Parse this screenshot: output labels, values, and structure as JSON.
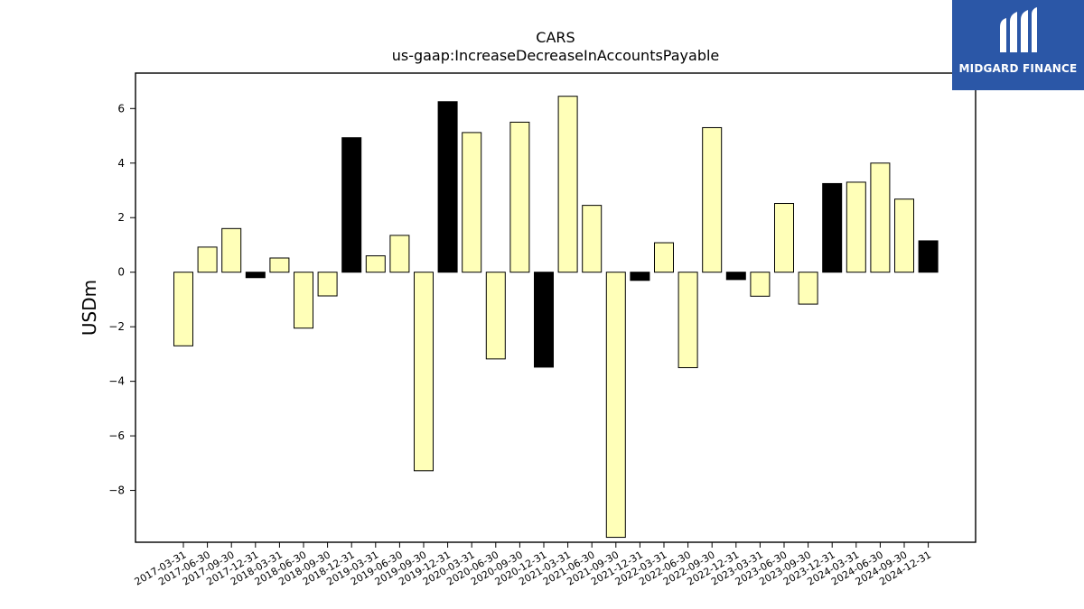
{
  "chart_data": {
    "type": "bar",
    "title": "CARS",
    "subtitle": "us-gaap:IncreaseDecreaseInAccountsPayable",
    "xlabel": "",
    "ylabel": "USDm",
    "ylim": [
      -9.9,
      7.3
    ],
    "yticks": [
      -8,
      -6,
      -4,
      -2,
      0,
      2,
      4,
      6
    ],
    "grid": false,
    "categories": [
      "2017-03-31",
      "2017-06-30",
      "2017-09-30",
      "2017-12-31",
      "2018-03-31",
      "2018-06-30",
      "2018-09-30",
      "2018-12-31",
      "2019-03-31",
      "2019-06-30",
      "2019-09-30",
      "2019-12-31",
      "2020-03-31",
      "2020-06-30",
      "2020-09-30",
      "2020-12-31",
      "2021-03-31",
      "2021-06-30",
      "2021-09-30",
      "2021-12-31",
      "2022-03-31",
      "2022-06-30",
      "2022-09-30",
      "2022-12-31",
      "2023-03-31",
      "2023-06-30",
      "2023-09-30",
      "2023-12-31",
      "2024-03-31",
      "2024-06-30",
      "2024-09-30",
      "2024-12-31"
    ],
    "values": [
      -2.7,
      0.92,
      1.6,
      -0.2,
      0.52,
      -2.05,
      -0.87,
      4.93,
      0.6,
      1.35,
      -7.28,
      6.25,
      5.12,
      -3.18,
      5.5,
      -3.48,
      6.45,
      2.45,
      -9.72,
      -0.3,
      1.08,
      -3.5,
      5.3,
      -0.27,
      -0.88,
      2.52,
      -1.17,
      3.25,
      3.3,
      4.0,
      2.68,
      1.15
    ],
    "highlight": [
      false,
      false,
      false,
      true,
      false,
      false,
      false,
      true,
      false,
      false,
      false,
      true,
      false,
      false,
      false,
      true,
      false,
      false,
      false,
      true,
      false,
      false,
      false,
      true,
      false,
      false,
      false,
      true,
      false,
      false,
      false,
      true
    ],
    "colors": {
      "normal": "#ffffb8",
      "highlight": "#000000",
      "edge": "#000000"
    }
  },
  "logo": {
    "text": "MIDGARD FINANCE",
    "background": "#2b57a7"
  }
}
